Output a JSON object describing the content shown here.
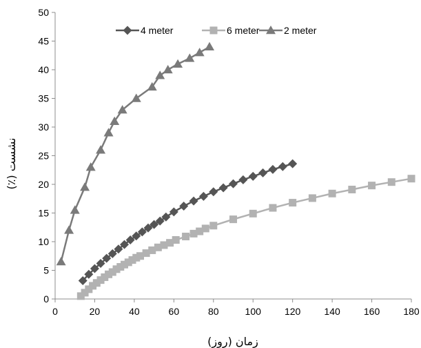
{
  "chart_data": {
    "type": "line",
    "xlabel": "زمان (روز)",
    "ylabel": "نشست (٪)",
    "xlim": [
      0,
      180
    ],
    "ylim": [
      0,
      50
    ],
    "x_ticks": [
      0,
      20,
      40,
      60,
      80,
      100,
      120,
      140,
      160,
      180
    ],
    "y_ticks": [
      0,
      5,
      10,
      15,
      20,
      25,
      30,
      35,
      40,
      45,
      50
    ],
    "grid": false,
    "legend_position": "top",
    "series": [
      {
        "name": "4 meter",
        "color": "#555555",
        "marker": "diamond",
        "x": [
          14,
          17,
          20,
          23,
          26,
          29,
          32,
          35,
          38,
          41,
          44,
          47,
          50,
          53,
          56,
          60,
          65,
          70,
          75,
          80,
          85,
          90,
          95,
          100,
          105,
          110,
          115,
          120
        ],
        "y": [
          3.2,
          4.3,
          5.3,
          6.2,
          7.1,
          7.9,
          8.7,
          9.5,
          10.3,
          11.0,
          11.7,
          12.4,
          13.0,
          13.6,
          14.3,
          15.2,
          16.2,
          17.1,
          17.9,
          18.7,
          19.4,
          20.1,
          20.8,
          21.4,
          22.0,
          22.6,
          23.1,
          23.6
        ]
      },
      {
        "name": "6 meter",
        "color": "#b2b2b2",
        "marker": "square",
        "x": [
          13,
          15,
          17,
          19,
          21,
          23,
          25,
          27,
          29,
          31,
          33,
          35,
          37,
          39,
          41,
          43,
          46,
          49,
          52,
          55,
          58,
          61,
          66,
          70,
          73,
          76,
          80,
          90,
          100,
          110,
          120,
          130,
          140,
          150,
          160,
          170,
          180
        ],
        "y": [
          0.5,
          1.1,
          1.7,
          2.3,
          2.8,
          3.3,
          3.8,
          4.3,
          4.7,
          5.2,
          5.6,
          6.0,
          6.4,
          6.8,
          7.2,
          7.5,
          8.0,
          8.5,
          9.0,
          9.4,
          9.8,
          10.3,
          10.9,
          11.4,
          11.8,
          12.3,
          12.8,
          13.9,
          14.9,
          15.9,
          16.8,
          17.6,
          18.4,
          19.1,
          19.8,
          20.4,
          21.0
        ]
      },
      {
        "name": "2 meter",
        "color": "#7a7a7a",
        "marker": "triangle",
        "x": [
          3,
          7,
          10,
          15,
          18,
          23,
          27,
          30,
          34,
          41,
          49,
          53,
          57,
          62,
          68,
          73,
          78
        ],
        "y": [
          6.5,
          12.0,
          15.5,
          19.5,
          23.0,
          26.0,
          29.0,
          31.0,
          33.0,
          35.0,
          37.0,
          39.0,
          40.0,
          41.0,
          42.0,
          43.0,
          44.0
        ]
      }
    ]
  }
}
